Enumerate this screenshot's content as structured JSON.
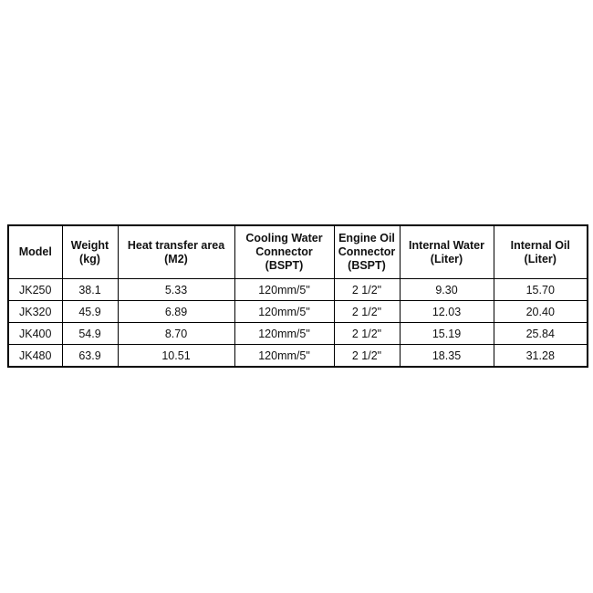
{
  "table": {
    "headers": [
      [
        "Model"
      ],
      [
        "Weight",
        "(kg)"
      ],
      [
        "Heat transfer area",
        "(M2)"
      ],
      [
        "Cooling Water",
        "Connector",
        "(BSPT)"
      ],
      [
        "Engine Oil",
        "Connector",
        "(BSPT)"
      ],
      [
        "Internal Water",
        "(Liter)"
      ],
      [
        "Internal Oil",
        "(Liter)"
      ]
    ],
    "rows": [
      [
        "JK250",
        "38.1",
        "5.33",
        "120mm/5\"",
        "2 1/2\"",
        "9.30",
        "15.70"
      ],
      [
        "JK320",
        "45.9",
        "6.89",
        "120mm/5\"",
        "2 1/2\"",
        "12.03",
        "20.40"
      ],
      [
        "JK400",
        "54.9",
        "8.70",
        "120mm/5\"",
        "2 1/2\"",
        "15.19",
        "25.84"
      ],
      [
        "JK480",
        "63.9",
        "10.51",
        "120mm/5\"",
        "2 1/2\"",
        "18.35",
        "31.28"
      ]
    ]
  }
}
